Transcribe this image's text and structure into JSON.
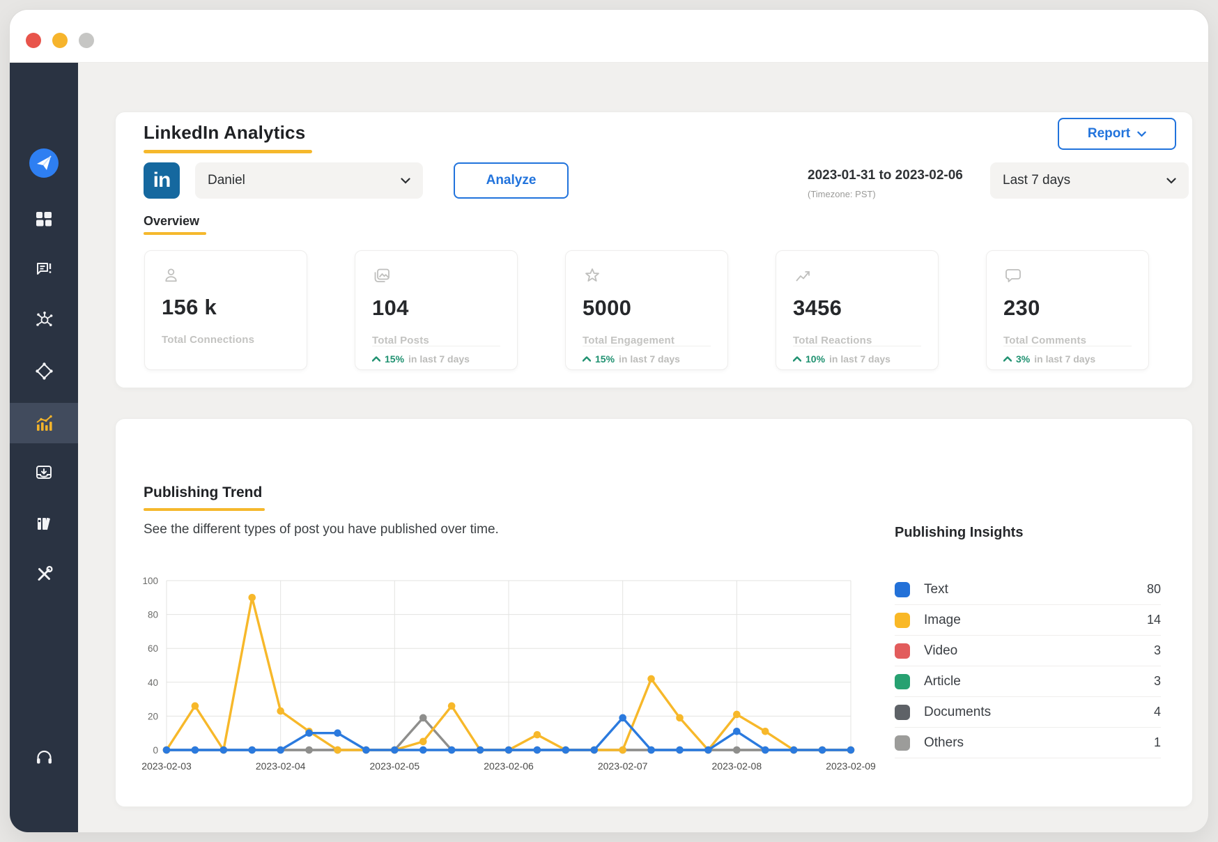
{
  "window": {
    "traffic_lights": [
      "#e8544b",
      "#f6b42c",
      "#c6c6c4"
    ]
  },
  "sidebar": {
    "items": [
      "app-logo-send",
      "dashboard",
      "messages-alert",
      "network-hub",
      "nodes-diamond",
      "analytics-active",
      "inbox",
      "library",
      "tools",
      "support-headphones"
    ]
  },
  "header": {
    "title": "LinkedIn Analytics",
    "account": "Daniel",
    "analyze_label": "Analyze",
    "report_label": "Report",
    "date_range": "2023-01-31 to 2023-02-06",
    "timezone": "(Timezone: PST)",
    "period": "Last 7 days",
    "linkedin_logo": "in"
  },
  "overview": {
    "label": "Overview",
    "cards": [
      {
        "icon": "person-icon",
        "value": "156 k",
        "label": "Total Connections"
      },
      {
        "icon": "posts-icon",
        "value": "104",
        "label": "Total Posts",
        "trend": {
          "pct": "15%",
          "suffix": "in last 7 days"
        }
      },
      {
        "icon": "star-icon",
        "value": "5000",
        "label": "Total Engagement",
        "trend": {
          "pct": "15%",
          "suffix": "in last 7 days"
        }
      },
      {
        "icon": "reactions-icon",
        "value": "3456",
        "label": "Total Reactions",
        "trend": {
          "pct": "10%",
          "suffix": "in last 7 days"
        }
      },
      {
        "icon": "comments-icon",
        "value": "230",
        "label": "Total Comments",
        "trend": {
          "pct": "3%",
          "suffix": "in last 7 days"
        }
      }
    ]
  },
  "publishing_trend": {
    "title": "Publishing Trend",
    "subtitle": "See the different types of post you have published over time."
  },
  "insights": {
    "title": "Publishing Insights",
    "rows": [
      {
        "label": "Text",
        "value": 80,
        "color": "#2371d8"
      },
      {
        "label": "Image",
        "value": 14,
        "color": "#f9b826"
      },
      {
        "label": "Video",
        "value": 3,
        "color": "#e25c5c"
      },
      {
        "label": "Article",
        "value": 3,
        "color": "#27a171"
      },
      {
        "label": "Documents",
        "value": 4,
        "color": "#5e6267"
      },
      {
        "label": "Others",
        "value": 1,
        "color": "#9c9c9a"
      }
    ]
  },
  "chart_data": {
    "type": "line",
    "title": "Publishing Trend",
    "x_tick_labels": [
      "2023-02-03",
      "2023-02-04",
      "2023-02-05",
      "2023-02-06",
      "2023-02-07",
      "2023-02-08",
      "2023-02-09"
    ],
    "points_per_interval": 4,
    "yticks": [
      0,
      20,
      40,
      60,
      80,
      100
    ],
    "ylim": [
      0,
      100
    ],
    "grid": true,
    "legend_position": "right-panel",
    "series": [
      {
        "name": "Others",
        "color": "#b3b3b1",
        "values": [
          0,
          0,
          0,
          0,
          0,
          0,
          0,
          0,
          0,
          0,
          0,
          0,
          0,
          0,
          0,
          0,
          0,
          0,
          0,
          0,
          0,
          0,
          0,
          0,
          0
        ]
      },
      {
        "name": "Documents",
        "color": "#8e8e8c",
        "values": [
          0,
          0,
          0,
          0,
          0,
          0,
          0,
          0,
          0,
          19,
          0,
          0,
          0,
          0,
          0,
          0,
          0,
          0,
          0,
          0,
          0,
          0,
          0,
          0,
          0
        ]
      },
      {
        "name": "Image",
        "color": "#f7b82a",
        "values": [
          0,
          26,
          0,
          90,
          23,
          11,
          0,
          0,
          0,
          5,
          26,
          0,
          0,
          9,
          0,
          0,
          0,
          42,
          19,
          0,
          21,
          11,
          0,
          0,
          0
        ]
      },
      {
        "name": "Text",
        "color": "#2b7ade",
        "values": [
          0,
          0,
          0,
          0,
          0,
          10,
          10,
          0,
          0,
          0,
          0,
          0,
          0,
          0,
          0,
          0,
          19,
          0,
          0,
          0,
          11,
          0,
          0,
          0,
          0
        ]
      }
    ]
  }
}
